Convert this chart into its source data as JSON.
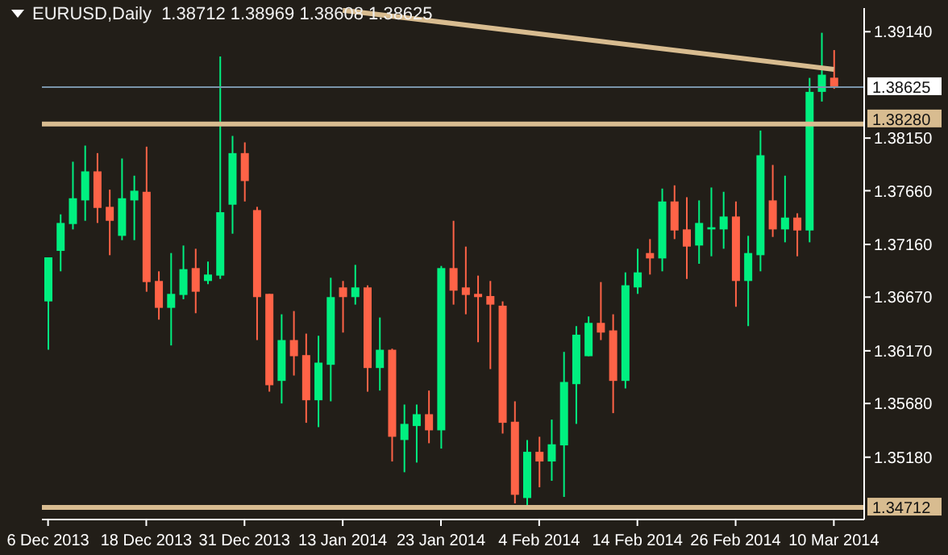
{
  "chart_data": {
    "type": "candlestick",
    "title": "EURUSD,Daily  1.38712 1.38969 1.38608 1.38625",
    "categories": [
      "6 Dec 2013",
      null,
      null,
      null,
      null,
      null,
      null,
      null,
      "18 Dec 2013",
      null,
      null,
      null,
      null,
      null,
      null,
      null,
      "31 Dec 2013",
      null,
      null,
      null,
      null,
      null,
      null,
      null,
      "13 Jan 2014",
      null,
      null,
      null,
      null,
      null,
      null,
      null,
      "23 Jan 2014",
      null,
      null,
      null,
      null,
      null,
      null,
      null,
      "4 Feb 2014",
      null,
      null,
      null,
      null,
      null,
      null,
      null,
      "14 Feb 2014",
      null,
      null,
      null,
      null,
      null,
      null,
      null,
      "26 Feb 2014",
      null,
      null,
      null,
      null,
      null,
      null,
      null,
      "10 Mar 2014"
    ],
    "ohlc": [
      [
        1.3663,
        1.3704,
        1.3618,
        1.3704
      ],
      [
        1.371,
        1.3744,
        1.3691,
        1.3736
      ],
      [
        1.3735,
        1.3793,
        1.373,
        1.3759
      ],
      [
        1.3757,
        1.3808,
        1.3738,
        1.3784
      ],
      [
        1.3784,
        1.3801,
        1.3736,
        1.375
      ],
      [
        1.3751,
        1.3767,
        1.3706,
        1.3738
      ],
      [
        1.3724,
        1.3796,
        1.372,
        1.3759
      ],
      [
        1.3757,
        1.378,
        1.372,
        1.3766
      ],
      [
        1.3765,
        1.3807,
        1.3672,
        1.3681
      ],
      [
        1.3682,
        1.3691,
        1.3646,
        1.3657
      ],
      [
        1.3657,
        1.3708,
        1.3622,
        1.367
      ],
      [
        1.3669,
        1.3715,
        1.3665,
        1.3693
      ],
      [
        1.3694,
        1.3712,
        1.3652,
        1.3672
      ],
      [
        1.3682,
        1.37,
        1.3679,
        1.3688
      ],
      [
        1.3687,
        1.3891,
        1.3684,
        1.3746
      ],
      [
        1.3753,
        1.3817,
        1.3726,
        1.3801
      ],
      [
        1.3801,
        1.3811,
        1.3756,
        1.3775
      ],
      [
        1.3748,
        1.3751,
        1.3627,
        1.3667
      ],
      [
        1.367,
        1.367,
        1.3579,
        1.3585
      ],
      [
        1.3589,
        1.3651,
        1.3568,
        1.3627
      ],
      [
        1.3627,
        1.3654,
        1.3594,
        1.3612
      ],
      [
        1.3613,
        1.3633,
        1.355,
        1.3571
      ],
      [
        1.3571,
        1.3631,
        1.3546,
        1.3606
      ],
      [
        1.3604,
        1.3685,
        1.357,
        1.3667
      ],
      [
        1.3676,
        1.3682,
        1.3634,
        1.3667
      ],
      [
        1.3667,
        1.3697,
        1.366,
        1.3676
      ],
      [
        1.3676,
        1.3678,
        1.3579,
        1.3601
      ],
      [
        1.3601,
        1.3648,
        1.358,
        1.3618
      ],
      [
        1.3618,
        1.3619,
        1.3514,
        1.3537
      ],
      [
        1.3534,
        1.3567,
        1.3504,
        1.3549
      ],
      [
        1.3547,
        1.3567,
        1.3513,
        1.3558
      ],
      [
        1.3558,
        1.358,
        1.3531,
        1.3543
      ],
      [
        1.3543,
        1.3696,
        1.3526,
        1.3694
      ],
      [
        1.3694,
        1.3738,
        1.366,
        1.3673
      ],
      [
        1.3676,
        1.3714,
        1.3651,
        1.3669
      ],
      [
        1.367,
        1.3687,
        1.3625,
        1.3667
      ],
      [
        1.3668,
        1.3682,
        1.36,
        1.366
      ],
      [
        1.3659,
        1.3663,
        1.354,
        1.355
      ],
      [
        1.3551,
        1.357,
        1.3475,
        1.3483
      ],
      [
        1.348,
        1.3534,
        1.34712,
        1.3523
      ],
      [
        1.3523,
        1.3537,
        1.349,
        1.3514
      ],
      [
        1.3514,
        1.3553,
        1.3496,
        1.353
      ],
      [
        1.3529,
        1.3616,
        1.3481,
        1.3588
      ],
      [
        1.3586,
        1.364,
        1.3549,
        1.3632
      ],
      [
        1.3612,
        1.3649,
        1.3612,
        1.3643
      ],
      [
        1.3643,
        1.3681,
        1.3627,
        1.3634
      ],
      [
        1.3636,
        1.3651,
        1.3559,
        1.3589
      ],
      [
        1.3589,
        1.369,
        1.3582,
        1.3678
      ],
      [
        1.3676,
        1.3712,
        1.367,
        1.369
      ],
      [
        1.3708,
        1.3721,
        1.3688,
        1.3703
      ],
      [
        1.3703,
        1.3768,
        1.3691,
        1.3756
      ],
      [
        1.3756,
        1.3771,
        1.3721,
        1.3729
      ],
      [
        1.373,
        1.376,
        1.3684,
        1.3714
      ],
      [
        1.3715,
        1.3757,
        1.3698,
        1.3736
      ],
      [
        1.373,
        1.3769,
        1.3705,
        1.3732
      ],
      [
        1.373,
        1.3765,
        1.3712,
        1.3742
      ],
      [
        1.3742,
        1.3756,
        1.3658,
        1.3682
      ],
      [
        1.3682,
        1.3724,
        1.364,
        1.3708
      ],
      [
        1.3706,
        1.3822,
        1.3691,
        1.3799
      ],
      [
        1.3757,
        1.379,
        1.3723,
        1.373
      ],
      [
        1.373,
        1.378,
        1.3718,
        1.3741
      ],
      [
        1.3741,
        1.3745,
        1.3705,
        1.3729
      ],
      [
        1.3729,
        1.3871,
        1.3718,
        1.3858
      ],
      [
        1.3858,
        1.3913,
        1.3849,
        1.3874
      ],
      [
        1.38712,
        1.38969,
        1.38608,
        1.38625
      ]
    ],
    "colors": [
      "#00f080",
      "#00f080",
      "#00f080",
      "#00f080",
      "#ff6347",
      "#ff6347",
      "#00f080",
      "#00f080",
      "#ff6347",
      "#ff6347",
      "#00f080",
      "#00f080",
      "#ff6347",
      "#00f080",
      "#00f080",
      "#00f080",
      "#ff6347",
      "#ff6347",
      "#ff6347",
      "#00f080",
      "#ff6347",
      "#ff6347",
      "#00f080",
      "#00f080",
      "#ff6347",
      "#00f080",
      "#ff6347",
      "#00f080",
      "#ff6347",
      "#00f080",
      "#00f080",
      "#ff6347",
      "#00f080",
      "#ff6347",
      "#ff6347",
      "#ff6347",
      "#ff6347",
      "#ff6347",
      "#ff6347",
      "#00f080",
      "#ff6347",
      "#00f080",
      "#00f080",
      "#00f080",
      "#00f080",
      "#ff6347",
      "#ff6347",
      "#00f080",
      "#00f080",
      "#ff6347",
      "#00f080",
      "#ff6347",
      "#ff6347",
      "#00f080",
      "#00f080",
      "#00f080",
      "#ff6347",
      "#00f080",
      "#00f080",
      "#ff6347",
      "#00f080",
      "#ff6347",
      "#00f080",
      "#00f080",
      "#ff6347"
    ],
    "series": [
      {
        "type": "line",
        "color": "#d8bc90",
        "values": [
          null,
          null,
          null,
          null,
          null,
          null,
          null,
          null,
          null,
          null,
          null,
          null,
          null,
          null,
          null,
          null,
          null,
          null,
          null,
          null,
          null,
          null,
          null,
          null,
          1.3934,
          null,
          null,
          null,
          null,
          null,
          null,
          null,
          null,
          null,
          null,
          null,
          null,
          null,
          null,
          null,
          null,
          null,
          null,
          null,
          null,
          null,
          null,
          null,
          null,
          null,
          null,
          null,
          null,
          null,
          null,
          null,
          null,
          null,
          null,
          null,
          null,
          null,
          null,
          null,
          1.3879
        ]
      }
    ],
    "ylim": [
      1.346,
      1.3936
    ],
    "yticks": [
      {
        "value": 1.3518,
        "label": "1.35180"
      },
      {
        "value": 1.3568,
        "label": "1.35680"
      },
      {
        "value": 1.3617,
        "label": "1.36170"
      },
      {
        "value": 1.3667,
        "label": "1.36670"
      },
      {
        "value": 1.3716,
        "label": "1.37160"
      },
      {
        "value": 1.3766,
        "label": "1.37660"
      },
      {
        "value": 1.3815,
        "label": "1.38150"
      },
      {
        "value": 1.3914,
        "label": "1.39140"
      }
    ],
    "ref_lines": [
      {
        "axis": "y",
        "value": 1.38625,
        "label": "1.38625",
        "color": "#7a95aa"
      },
      {
        "axis": "y",
        "value": 1.3828,
        "label": "1.38280",
        "color": "#d8bc90"
      },
      {
        "axis": "y",
        "value": 1.34712,
        "label": "1.34712",
        "color": "#d8bc90"
      }
    ]
  }
}
